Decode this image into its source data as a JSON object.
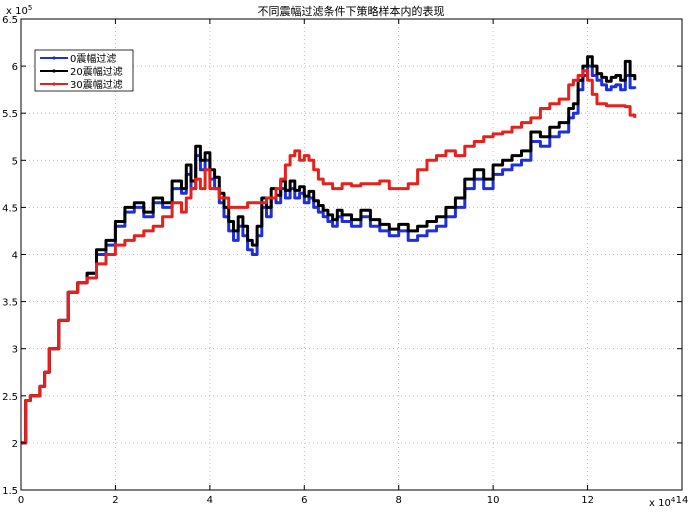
{
  "chart_data": {
    "type": "line",
    "title": "不同震幅过滤条件下策略样本内的表现",
    "xlabel": "",
    "ylabel": "",
    "x_exponent_label": "x 10",
    "x_exponent": "4",
    "y_exponent_label": "x 10",
    "y_exponent": "5",
    "xlim": [
      0,
      140000
    ],
    "ylim": [
      150000,
      650000
    ],
    "xticks": [
      0,
      20000,
      40000,
      60000,
      80000,
      100000,
      120000,
      140000
    ],
    "xtick_labels": [
      "0",
      "2",
      "4",
      "6",
      "8",
      "10",
      "12",
      "14"
    ],
    "yticks": [
      150000,
      200000,
      250000,
      300000,
      350000,
      400000,
      450000,
      500000,
      550000,
      600000,
      650000
    ],
    "ytick_labels": [
      "1.5",
      "2",
      "2.5",
      "3",
      "3.5",
      "4",
      "4.5",
      "5",
      "5.5",
      "6",
      "6.5"
    ],
    "grid": true,
    "legend_position": "top-left",
    "series": [
      {
        "name": "0震幅过滤",
        "color": "#1f2fd9",
        "x": [
          0,
          1000,
          2000,
          4000,
          5000,
          6000,
          8000,
          10000,
          12000,
          14000,
          16000,
          18000,
          20000,
          22000,
          24000,
          26000,
          28000,
          30000,
          32000,
          34000,
          35000,
          36000,
          37000,
          38000,
          39000,
          40000,
          41000,
          42000,
          43000,
          44000,
          45000,
          46000,
          47000,
          48000,
          49000,
          50000,
          51000,
          52000,
          53000,
          54000,
          55000,
          56000,
          57000,
          58000,
          59000,
          60000,
          61000,
          62000,
          63000,
          64000,
          65000,
          66000,
          67000,
          68000,
          70000,
          72000,
          74000,
          76000,
          78000,
          80000,
          82000,
          84000,
          86000,
          88000,
          90000,
          92000,
          94000,
          96000,
          98000,
          100000,
          102000,
          104000,
          106000,
          108000,
          110000,
          112000,
          114000,
          116000,
          117000,
          118000,
          119000,
          120000,
          121000,
          122000,
          123000,
          124000,
          125000,
          126000,
          127000,
          128000,
          129000,
          130000
        ],
        "y": [
          200000,
          245000,
          250000,
          260000,
          275000,
          300000,
          330000,
          360000,
          370000,
          380000,
          400000,
          410000,
          430000,
          445000,
          450000,
          440000,
          455000,
          450000,
          470000,
          465000,
          485000,
          470000,
          505000,
          490000,
          500000,
          480000,
          470000,
          455000,
          440000,
          425000,
          415000,
          430000,
          420000,
          405000,
          400000,
          420000,
          450000,
          440000,
          460000,
          455000,
          470000,
          460000,
          470000,
          460000,
          465000,
          455000,
          460000,
          450000,
          445000,
          440000,
          435000,
          430000,
          440000,
          435000,
          430000,
          440000,
          430000,
          425000,
          420000,
          425000,
          415000,
          420000,
          425000,
          430000,
          440000,
          450000,
          470000,
          480000,
          470000,
          485000,
          490000,
          495000,
          500000,
          520000,
          515000,
          525000,
          530000,
          545000,
          550000,
          575000,
          590000,
          600000,
          590000,
          585000,
          580000,
          575000,
          578000,
          580000,
          575000,
          590000,
          577000,
          576000
        ]
      },
      {
        "name": "20震幅过滤",
        "color": "#000000",
        "x": [
          0,
          1000,
          2000,
          4000,
          5000,
          6000,
          8000,
          10000,
          12000,
          14000,
          16000,
          18000,
          20000,
          22000,
          24000,
          26000,
          28000,
          30000,
          32000,
          34000,
          35000,
          36000,
          37000,
          38000,
          39000,
          40000,
          41000,
          42000,
          43000,
          44000,
          45000,
          46000,
          47000,
          48000,
          49000,
          50000,
          51000,
          52000,
          53000,
          54000,
          55000,
          56000,
          57000,
          58000,
          59000,
          60000,
          61000,
          62000,
          63000,
          64000,
          65000,
          66000,
          67000,
          68000,
          70000,
          72000,
          74000,
          76000,
          78000,
          80000,
          82000,
          84000,
          86000,
          88000,
          90000,
          92000,
          94000,
          96000,
          98000,
          100000,
          102000,
          104000,
          106000,
          108000,
          110000,
          112000,
          114000,
          116000,
          117000,
          118000,
          119000,
          120000,
          121000,
          122000,
          123000,
          124000,
          125000,
          126000,
          127000,
          128000,
          129000,
          130000
        ],
        "y": [
          200000,
          245000,
          250000,
          260000,
          275000,
          300000,
          330000,
          360000,
          370000,
          380000,
          405000,
          415000,
          435000,
          450000,
          455000,
          445000,
          460000,
          455000,
          478000,
          470000,
          495000,
          478000,
          515000,
          500000,
          508000,
          490000,
          482000,
          465000,
          450000,
          435000,
          425000,
          440000,
          430000,
          415000,
          410000,
          430000,
          460000,
          450000,
          470000,
          463000,
          478000,
          468000,
          478000,
          468000,
          472000,
          462000,
          467000,
          457000,
          452000,
          447000,
          442000,
          437000,
          447000,
          442000,
          437000,
          447000,
          437000,
          432000,
          427000,
          432000,
          425000,
          430000,
          435000,
          440000,
          450000,
          460000,
          480000,
          490000,
          480000,
          495000,
          500000,
          505000,
          510000,
          530000,
          525000,
          535000,
          540000,
          555000,
          560000,
          585000,
          600000,
          610000,
          600000,
          592000,
          588000,
          584000,
          588000,
          590000,
          585000,
          605000,
          590000,
          585000
        ]
      },
      {
        "name": "30震幅过滤",
        "color": "#e8201c",
        "x": [
          0,
          1000,
          2000,
          4000,
          5000,
          6000,
          8000,
          10000,
          12000,
          14000,
          16000,
          18000,
          20000,
          22000,
          24000,
          26000,
          28000,
          30000,
          32000,
          34000,
          35000,
          36000,
          37000,
          38000,
          39000,
          40000,
          42000,
          44000,
          46000,
          48000,
          50000,
          52000,
          54000,
          55000,
          56000,
          57000,
          58000,
          59000,
          60000,
          61000,
          62000,
          63000,
          64000,
          66000,
          68000,
          70000,
          72000,
          74000,
          76000,
          78000,
          80000,
          82000,
          84000,
          86000,
          88000,
          90000,
          92000,
          94000,
          96000,
          98000,
          100000,
          102000,
          104000,
          106000,
          108000,
          110000,
          112000,
          114000,
          116000,
          117000,
          118000,
          119000,
          120000,
          121000,
          122000,
          124000,
          126000,
          128000,
          129000,
          130000
        ],
        "y": [
          200000,
          245000,
          250000,
          260000,
          275000,
          300000,
          330000,
          360000,
          370000,
          375000,
          390000,
          400000,
          410000,
          415000,
          420000,
          425000,
          430000,
          440000,
          455000,
          445000,
          460000,
          470000,
          480000,
          470000,
          490000,
          470000,
          460000,
          450000,
          450000,
          455000,
          455000,
          460000,
          470000,
          480000,
          495000,
          505000,
          510000,
          500000,
          505000,
          500000,
          490000,
          480000,
          475000,
          470000,
          475000,
          473000,
          475000,
          475000,
          478000,
          470000,
          470000,
          475000,
          490000,
          500000,
          505000,
          510000,
          505000,
          515000,
          520000,
          525000,
          528000,
          530000,
          535000,
          540000,
          545000,
          555000,
          560000,
          565000,
          580000,
          585000,
          590000,
          595000,
          585000,
          570000,
          560000,
          558000,
          558000,
          557000,
          548000,
          545000
        ]
      }
    ]
  }
}
